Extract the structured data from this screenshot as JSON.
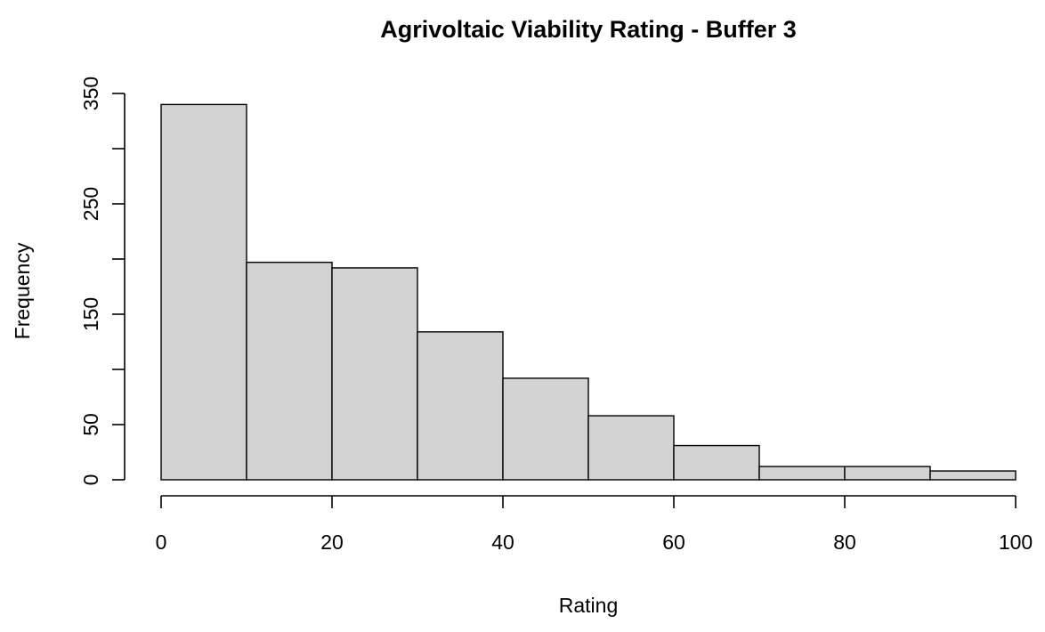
{
  "chart_data": {
    "type": "histogram",
    "title": "Agrivoltaic Viability Rating - Buffer 3",
    "xlabel": "Rating",
    "ylabel": "Frequency",
    "bins": [
      [
        0,
        10
      ],
      [
        10,
        20
      ],
      [
        20,
        30
      ],
      [
        30,
        40
      ],
      [
        40,
        50
      ],
      [
        50,
        60
      ],
      [
        60,
        70
      ],
      [
        70,
        80
      ],
      [
        80,
        90
      ],
      [
        90,
        100
      ]
    ],
    "values": [
      340,
      197,
      192,
      134,
      92,
      58,
      31,
      12,
      12,
      8
    ],
    "xlim": [
      0,
      100
    ],
    "ylim": [
      0,
      350
    ],
    "xticks": [
      0,
      20,
      40,
      60,
      80,
      100
    ],
    "yticks": [
      0,
      50,
      150,
      250,
      350
    ],
    "bar_color": "#d3d3d3",
    "grid": false
  }
}
